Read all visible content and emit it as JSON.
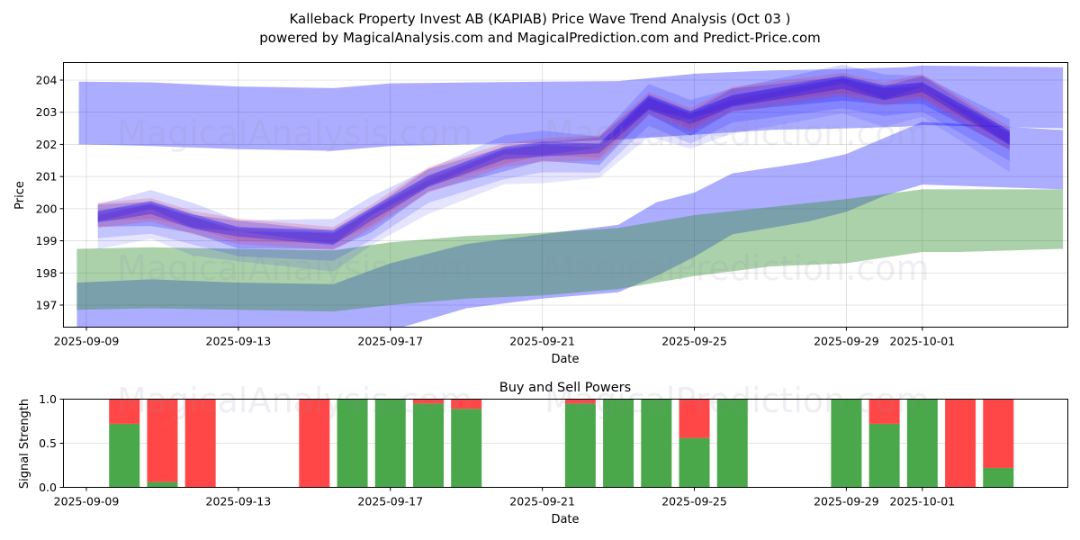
{
  "header": {
    "title": "Kalleback Property Invest AB (KAPIAB) Price Wave Trend Analysis (Oct 03 )",
    "subtitle": "powered by MagicalAnalysis.com and MagicalPrediction.com and Predict-Price.com"
  },
  "watermarks": [
    "MagicalAnalysis.com",
    "MagicalPrediction.com"
  ],
  "colors": {
    "band_blue": "#0000ff",
    "band_red": "#ff4040",
    "band_green": "#3a9a3a",
    "buy": "#4aa74a",
    "sell": "#ff4747",
    "grid": "#d9d9d9"
  },
  "chart_data": [
    {
      "type": "area",
      "title": "",
      "xlabel": "Date",
      "ylabel": "Price",
      "ylim": [
        196.33,
        204.53
      ],
      "xlim_days_from_2025_09_09": [
        -0.62,
        25.8
      ],
      "grid": true,
      "x_ticks": [
        "2025-09-09",
        "2025-09-13",
        "2025-09-17",
        "2025-09-21",
        "2025-09-25",
        "2025-09-29",
        "2025-10-01"
      ],
      "x_tick_days": [
        0,
        4,
        8,
        12,
        16,
        20,
        22
      ],
      "y_ticks": [
        197,
        198,
        199,
        200,
        201,
        202,
        203,
        204
      ],
      "bands": [
        {
          "name": "upper-envelope",
          "color": "blue",
          "opacity": 0.32,
          "x": [
            -0.2,
            1.7,
            4,
            6.5,
            8,
            12,
            14,
            16,
            18,
            20,
            21.5,
            22,
            25.7
          ],
          "lower": [
            202.0,
            201.95,
            201.85,
            201.8,
            201.95,
            202.05,
            202.15,
            202.3,
            202.45,
            202.5,
            202.55,
            202.6,
            202.5
          ],
          "upper": [
            203.95,
            203.93,
            203.8,
            203.75,
            203.9,
            203.95,
            203.97,
            204.2,
            204.3,
            204.35,
            204.4,
            204.45,
            204.4
          ]
        },
        {
          "name": "lower-envelope-blue",
          "color": "blue",
          "opacity": 0.32,
          "x": [
            -0.25,
            1.7,
            4,
            6.5,
            8,
            10,
            12,
            14,
            15,
            16,
            17,
            19,
            20,
            21,
            22,
            25.7
          ],
          "lower": [
            196.0,
            195.9,
            195.8,
            195.8,
            196.2,
            196.9,
            197.2,
            197.4,
            197.9,
            198.5,
            199.2,
            199.6,
            199.9,
            200.4,
            200.75,
            200.6
          ],
          "upper": [
            197.7,
            197.8,
            197.7,
            197.65,
            198.3,
            198.9,
            199.2,
            199.5,
            200.2,
            200.5,
            201.1,
            201.45,
            201.7,
            202.2,
            202.7,
            202.45
          ]
        },
        {
          "name": "lower-envelope-green",
          "color": "green",
          "opacity": 0.4,
          "x": [
            -0.25,
            1.7,
            4,
            6.5,
            8,
            10,
            12,
            14,
            16,
            18,
            20,
            22,
            23,
            25.7
          ],
          "lower": [
            196.85,
            196.9,
            196.85,
            196.8,
            197.0,
            197.2,
            197.3,
            197.5,
            197.9,
            198.2,
            198.3,
            198.65,
            198.65,
            198.75
          ],
          "upper": [
            198.75,
            198.8,
            198.75,
            198.7,
            198.95,
            199.15,
            199.25,
            199.4,
            199.8,
            200.05,
            200.3,
            200.6,
            200.6,
            200.6
          ]
        }
      ],
      "wave_series": {
        "x": [
          0.3,
          1.7,
          2.8,
          4,
          6.5,
          7.5,
          9,
          11,
          12,
          13.5,
          14.8,
          15.9,
          17,
          19.9,
          21,
          22,
          24.3
        ],
        "center": [
          199.7,
          199.9,
          199.5,
          199.2,
          199.0,
          199.7,
          200.8,
          201.6,
          201.75,
          201.8,
          203.2,
          202.7,
          203.3,
          203.8,
          203.5,
          203.7,
          202.1
        ],
        "layers": [
          {
            "color": "blue",
            "offset": 0.0,
            "half": 0.35,
            "opacity": 0.22
          },
          {
            "color": "red",
            "offset": 0.15,
            "half": 0.3,
            "opacity": 0.2
          },
          {
            "color": "blue",
            "offset": -0.2,
            "half": 0.45,
            "opacity": 0.14
          },
          {
            "color": "red",
            "offset": -0.05,
            "half": 0.25,
            "opacity": 0.18
          },
          {
            "color": "blue",
            "offset": 0.1,
            "half": 0.2,
            "opacity": 0.28
          },
          {
            "color": "blue",
            "offset": -0.35,
            "half": 0.55,
            "opacity": 0.1
          },
          {
            "color": "blue",
            "offset": 0.3,
            "half": 0.3,
            "opacity": 0.15
          }
        ]
      }
    },
    {
      "type": "bar",
      "title": "Buy and Sell Powers",
      "xlabel": "Date",
      "ylabel": "Signal Strength",
      "ylim": [
        0,
        1
      ],
      "y_ticks": [
        "0.0",
        "0.5",
        "1.0"
      ],
      "grid": true,
      "x_ticks": [
        "2025-09-09",
        "2025-09-13",
        "2025-09-17",
        "2025-09-21",
        "2025-09-25",
        "2025-09-29",
        "2025-10-01"
      ],
      "x_tick_days": [
        0,
        4,
        8,
        12,
        16,
        20,
        22
      ],
      "categories": [
        "2025-09-10",
        "2025-09-11",
        "2025-09-12",
        "2025-09-15",
        "2025-09-16",
        "2025-09-17",
        "2025-09-18",
        "2025-09-19",
        "2025-09-22",
        "2025-09-23",
        "2025-09-24",
        "2025-09-25",
        "2025-09-26",
        "2025-09-29",
        "2025-09-30",
        "2025-10-01",
        "2025-10-02",
        "2025-10-03"
      ],
      "category_days": [
        1,
        2,
        3,
        6,
        7,
        8,
        9,
        10,
        13,
        14,
        15,
        16,
        17,
        20,
        21,
        22,
        23,
        24
      ],
      "series": [
        {
          "name": "Buy",
          "values": [
            0.72,
            0.06,
            0.0,
            0.0,
            1.0,
            1.0,
            0.95,
            0.89,
            0.95,
            1.0,
            1.0,
            0.56,
            1.0,
            1.0,
            0.72,
            1.0,
            0.0,
            0.22
          ]
        },
        {
          "name": "Sell",
          "values": [
            0.28,
            0.94,
            1.0,
            1.0,
            0.0,
            0.0,
            0.05,
            0.11,
            0.05,
            0.0,
            0.0,
            0.44,
            0.0,
            0.0,
            0.28,
            0.0,
            1.0,
            0.78
          ]
        }
      ]
    }
  ]
}
